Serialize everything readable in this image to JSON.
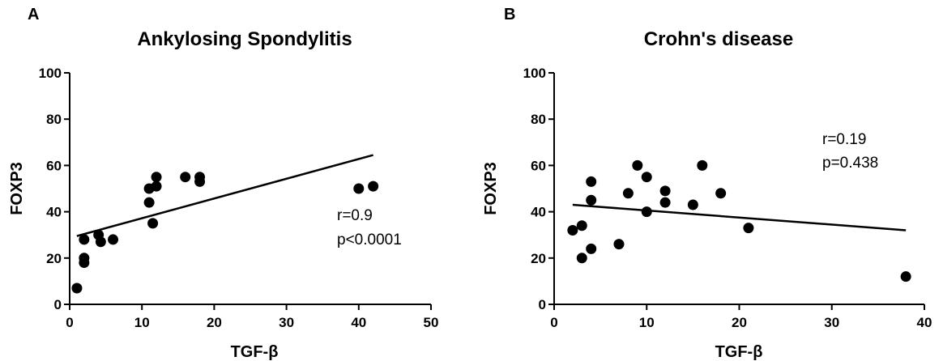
{
  "chart_data": [
    {
      "type": "scatter",
      "panel": "A",
      "title": "Ankylosing Spondylitis",
      "xlabel": "TGF-β",
      "ylabel": "FOXP3",
      "xlim": [
        0,
        50
      ],
      "ylim": [
        0,
        100
      ],
      "xticks": [
        "0",
        "10",
        "20",
        "30",
        "40",
        "50"
      ],
      "yticks": [
        "0",
        "20",
        "40",
        "60",
        "80",
        "100"
      ],
      "annotation": [
        "r=0.9",
        "p<0.0001"
      ],
      "points": [
        {
          "x": 1,
          "y": 7
        },
        {
          "x": 2,
          "y": 28
        },
        {
          "x": 2,
          "y": 20
        },
        {
          "x": 2,
          "y": 18
        },
        {
          "x": 4,
          "y": 30
        },
        {
          "x": 4.3,
          "y": 27
        },
        {
          "x": 6,
          "y": 28
        },
        {
          "x": 11,
          "y": 50
        },
        {
          "x": 11,
          "y": 44
        },
        {
          "x": 11.5,
          "y": 35
        },
        {
          "x": 12,
          "y": 51
        },
        {
          "x": 12,
          "y": 55
        },
        {
          "x": 16,
          "y": 55
        },
        {
          "x": 18,
          "y": 55
        },
        {
          "x": 18,
          "y": 53
        },
        {
          "x": 40,
          "y": 50
        },
        {
          "x": 42,
          "y": 51
        }
      ],
      "fit_line": {
        "x": [
          1,
          42
        ],
        "y": [
          29.5,
          64.5
        ]
      }
    },
    {
      "type": "scatter",
      "panel": "B",
      "title": "Crohn's disease",
      "xlabel": "TGF-β",
      "ylabel": "FOXP3",
      "xlim": [
        0,
        40
      ],
      "ylim": [
        0,
        100
      ],
      "xticks": [
        "0",
        "10",
        "20",
        "30",
        "40"
      ],
      "yticks": [
        "0",
        "20",
        "40",
        "60",
        "80",
        "100"
      ],
      "annotation": [
        "r=0.19",
        "p=0.438"
      ],
      "points": [
        {
          "x": 2,
          "y": 32
        },
        {
          "x": 3,
          "y": 34
        },
        {
          "x": 3,
          "y": 20
        },
        {
          "x": 4,
          "y": 53
        },
        {
          "x": 4,
          "y": 45
        },
        {
          "x": 4,
          "y": 24
        },
        {
          "x": 7,
          "y": 26
        },
        {
          "x": 8,
          "y": 48
        },
        {
          "x": 9,
          "y": 60
        },
        {
          "x": 10,
          "y": 55
        },
        {
          "x": 10,
          "y": 40
        },
        {
          "x": 12,
          "y": 49
        },
        {
          "x": 12,
          "y": 44
        },
        {
          "x": 15,
          "y": 43
        },
        {
          "x": 16,
          "y": 60
        },
        {
          "x": 18,
          "y": 48
        },
        {
          "x": 21,
          "y": 33
        },
        {
          "x": 38,
          "y": 12
        }
      ],
      "fit_line": {
        "x": [
          2,
          38
        ],
        "y": [
          43,
          32
        ]
      }
    }
  ]
}
